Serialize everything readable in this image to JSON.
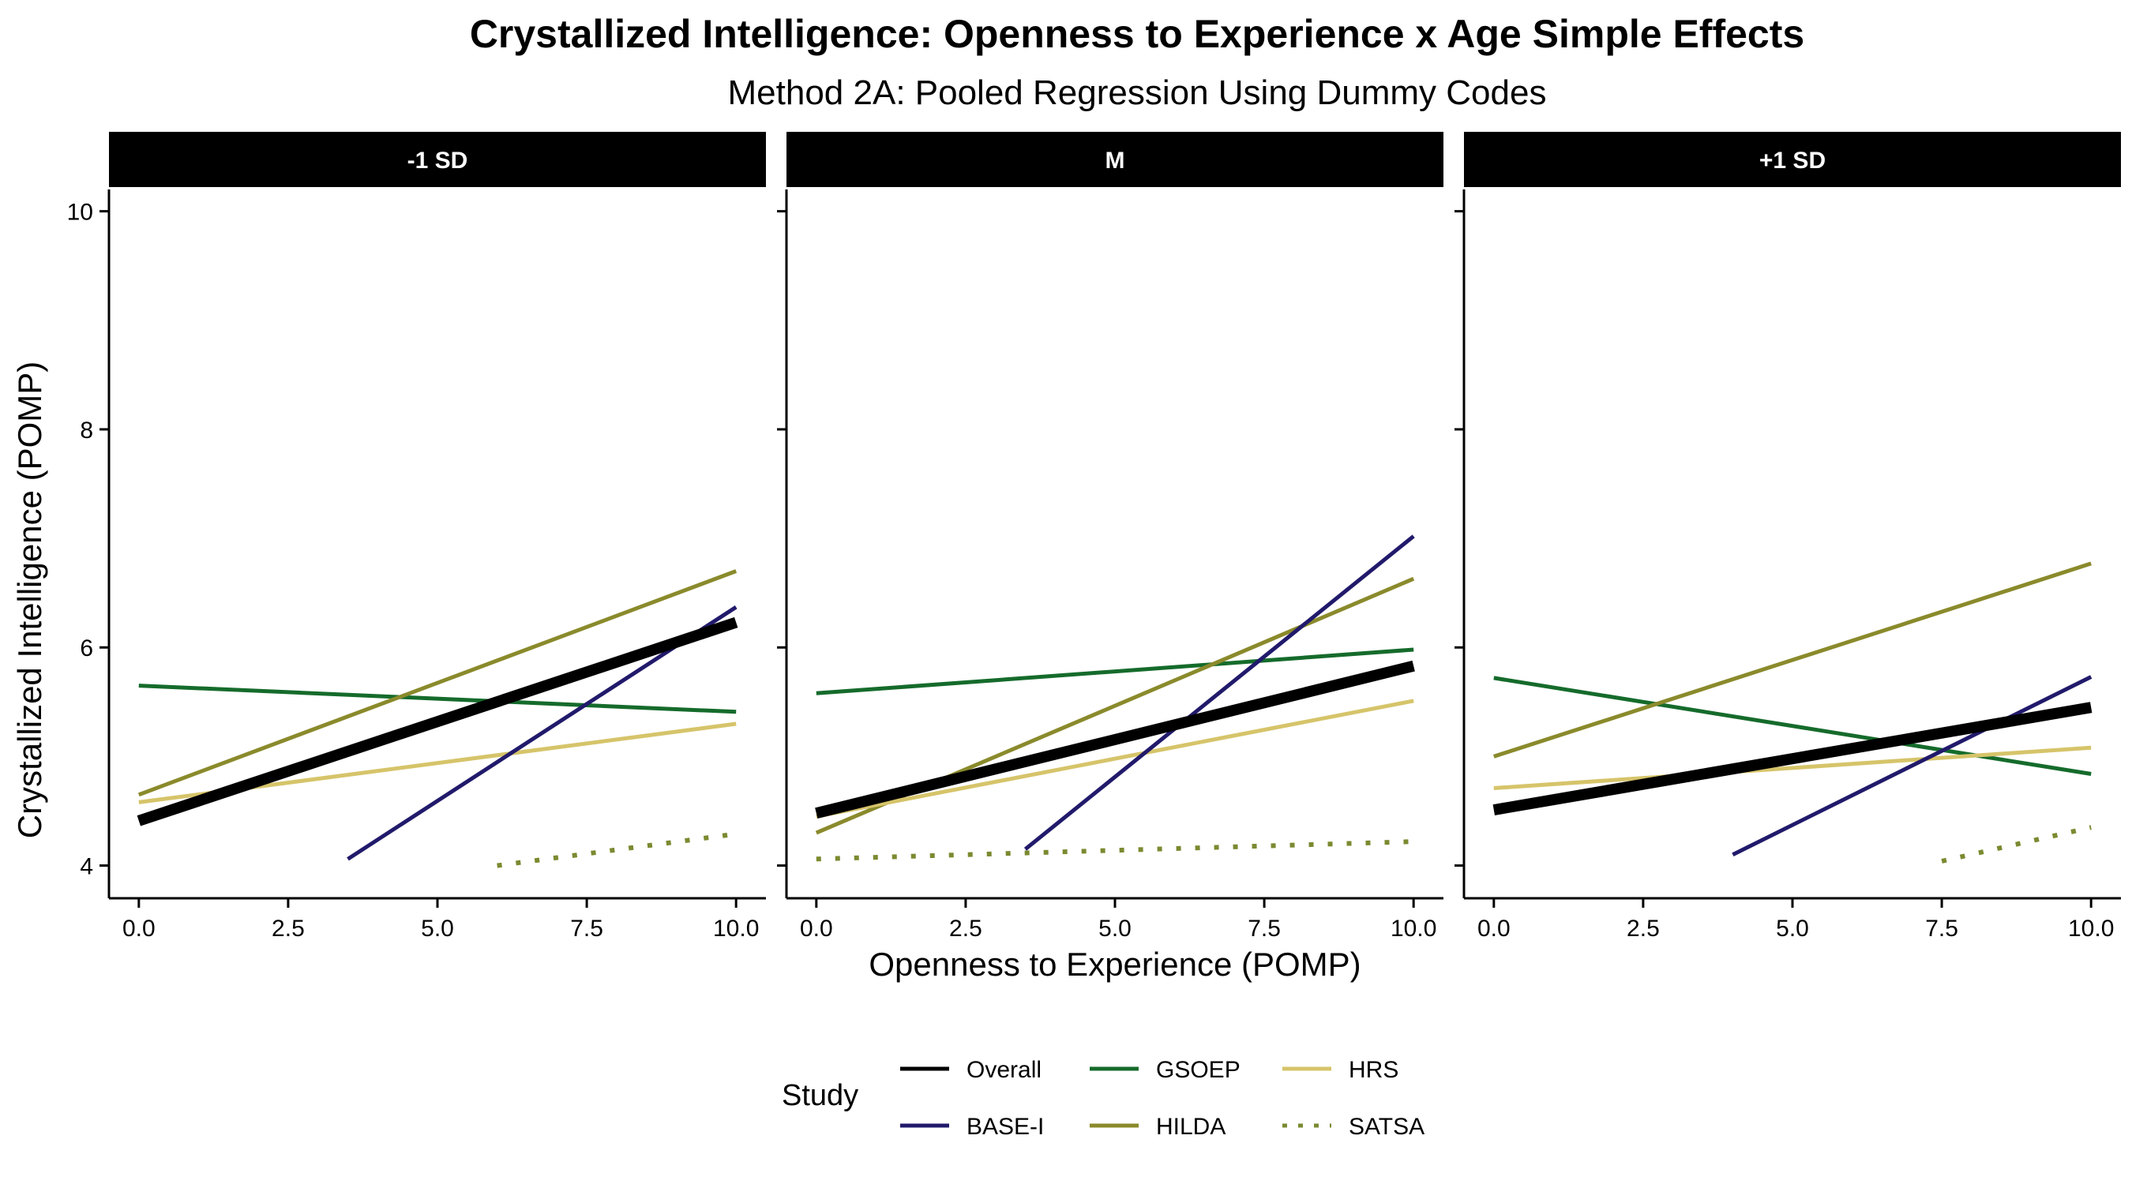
{
  "chart_data": {
    "type": "line",
    "title": "Crystallized Intelligence: Openness to Experience x Age Simple Effects",
    "subtitle": "Method 2A: Pooled Regression Using Dummy Codes",
    "xlabel": "Openness to Experience (POMP)",
    "ylabel": "Crystallized Intelligence (POMP)",
    "xlim": [
      -0.5,
      10.5
    ],
    "ylim": [
      3.7,
      10.2
    ],
    "x_ticks": [
      0,
      2.5,
      5,
      7.5,
      10
    ],
    "x_tick_labels": [
      "0.0",
      "2.5",
      "5.0",
      "7.5",
      "10.0"
    ],
    "y_ticks": [
      4,
      6,
      8,
      10
    ],
    "y_tick_labels": [
      "4",
      "6",
      "8",
      "10"
    ],
    "grid": false,
    "legend": {
      "title": "Study",
      "position": "bottom",
      "entries": [
        "Overall",
        "BASE-I",
        "GSOEP",
        "HILDA",
        "HRS",
        "SATSA"
      ]
    },
    "series_styles": {
      "Overall": {
        "color": "#000000",
        "width": 14,
        "dash": "solid"
      },
      "BASE-I": {
        "color": "#211a6b",
        "width": 5,
        "dash": "solid"
      },
      "GSOEP": {
        "color": "#156b2b",
        "width": 5,
        "dash": "solid"
      },
      "HILDA": {
        "color": "#8a8a2c",
        "width": 5,
        "dash": "solid"
      },
      "HRS": {
        "color": "#d6c46a",
        "width": 5,
        "dash": "solid"
      },
      "SATSA": {
        "color": "#7a8a30",
        "width": 6,
        "dash": "dotted"
      }
    },
    "panels": [
      {
        "label": "-1 SD",
        "series": [
          {
            "name": "GSOEP",
            "x": [
              0,
              10
            ],
            "y": [
              5.65,
              5.41
            ]
          },
          {
            "name": "HILDA",
            "x": [
              0,
              10
            ],
            "y": [
              4.65,
              6.7
            ]
          },
          {
            "name": "HRS",
            "x": [
              0,
              10
            ],
            "y": [
              4.58,
              5.3
            ]
          },
          {
            "name": "BASE-I",
            "x": [
              3.5,
              10
            ],
            "y": [
              4.06,
              6.37
            ]
          },
          {
            "name": "SATSA",
            "x": [
              6,
              10
            ],
            "y": [
              4.0,
              4.29
            ]
          },
          {
            "name": "Overall",
            "x": [
              0,
              10
            ],
            "y": [
              4.41,
              6.23
            ]
          }
        ]
      },
      {
        "label": "M",
        "series": [
          {
            "name": "GSOEP",
            "x": [
              0,
              10
            ],
            "y": [
              5.58,
              5.98
            ]
          },
          {
            "name": "HILDA",
            "x": [
              0,
              10
            ],
            "y": [
              4.3,
              6.63
            ]
          },
          {
            "name": "HRS",
            "x": [
              0,
              10
            ],
            "y": [
              4.45,
              5.51
            ]
          },
          {
            "name": "BASE-I",
            "x": [
              3.5,
              10
            ],
            "y": [
              4.15,
              7.02
            ]
          },
          {
            "name": "SATSA",
            "x": [
              0,
              10
            ],
            "y": [
              4.06,
              4.22
            ]
          },
          {
            "name": "Overall",
            "x": [
              0,
              10
            ],
            "y": [
              4.48,
              5.83
            ]
          }
        ]
      },
      {
        "label": "+1 SD",
        "series": [
          {
            "name": "GSOEP",
            "x": [
              0,
              10
            ],
            "y": [
              5.72,
              4.84
            ]
          },
          {
            "name": "HILDA",
            "x": [
              0,
              10
            ],
            "y": [
              5.0,
              6.77
            ]
          },
          {
            "name": "HRS",
            "x": [
              0,
              10
            ],
            "y": [
              4.71,
              5.08
            ]
          },
          {
            "name": "BASE-I",
            "x": [
              4,
              10
            ],
            "y": [
              4.1,
              5.73
            ]
          },
          {
            "name": "SATSA",
            "x": [
              7.5,
              10
            ],
            "y": [
              4.04,
              4.35
            ]
          },
          {
            "name": "Overall",
            "x": [
              0,
              10
            ],
            "y": [
              4.51,
              5.45
            ]
          }
        ]
      }
    ]
  }
}
